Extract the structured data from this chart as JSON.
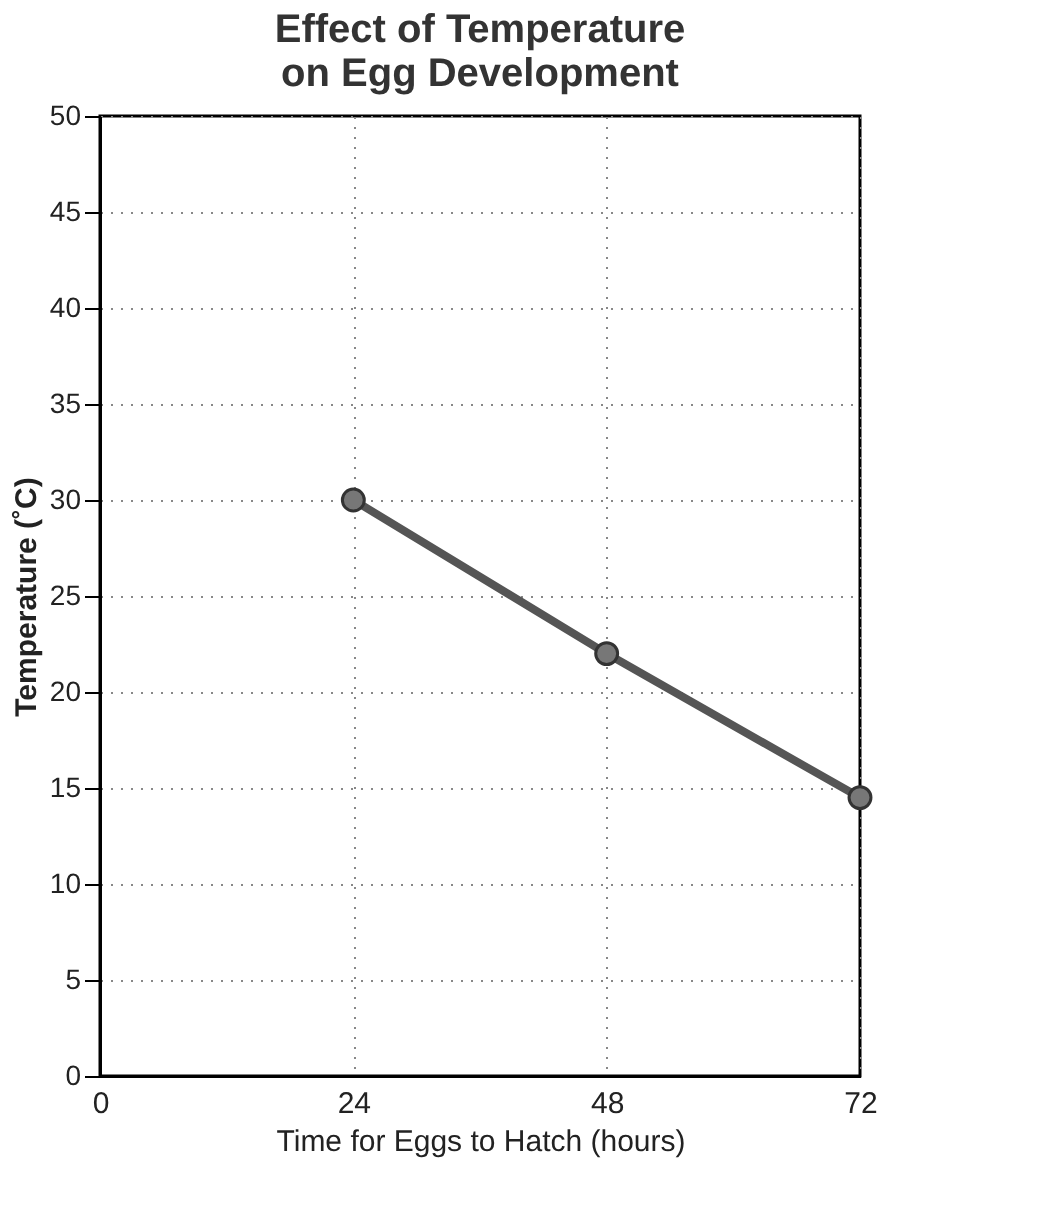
{
  "chart_data": {
    "type": "line",
    "title": [
      "Effect of Temperature",
      "on Egg Development"
    ],
    "xlabel": "Time for Eggs to Hatch (hours)",
    "ylabel": "Temperature (˚C)",
    "xlim": [
      0,
      72
    ],
    "xticks": [
      0,
      24,
      48,
      72
    ],
    "ylim": [
      0,
      50
    ],
    "yticks": [
      0,
      5,
      10,
      15,
      20,
      25,
      30,
      35,
      40,
      45,
      50
    ],
    "series": [
      {
        "x": [
          24,
          48,
          72
        ],
        "values": [
          30,
          22,
          14.5
        ],
        "color": "#555555"
      }
    ],
    "grid": true,
    "marker": "circle",
    "line_style": "solid"
  }
}
